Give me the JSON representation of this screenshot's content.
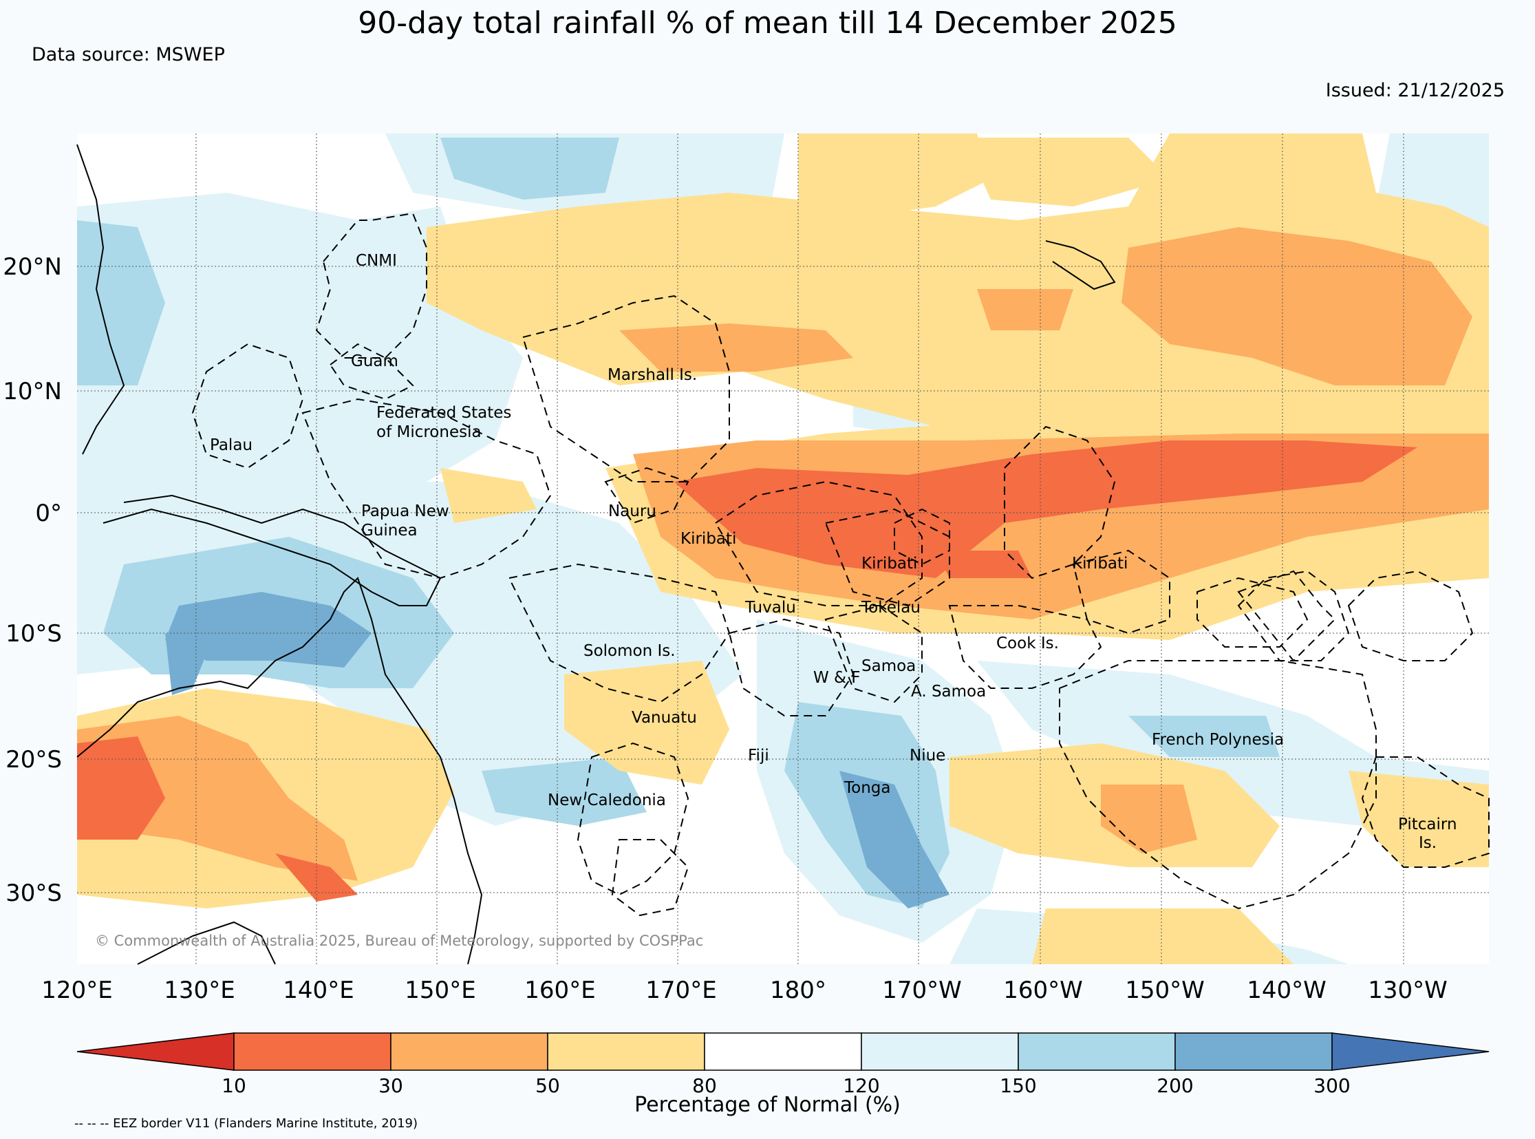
{
  "header": {
    "title": "90-day total rainfall % of mean till 14 December 2025",
    "data_source": "Data source: MSWEP",
    "issued": "Issued: 21/12/2025"
  },
  "map": {
    "lon_ticks": [
      "120°E",
      "130°E",
      "140°E",
      "150°E",
      "160°E",
      "170°E",
      "180°",
      "170°W",
      "160°W",
      "150°W",
      "140°W",
      "130°W"
    ],
    "lat_ticks": [
      "20°N",
      "10°N",
      "0°",
      "10°S",
      "20°S",
      "30°S"
    ],
    "copyright": "© Commonwealth of Australia 2025, Bureau of Meteorology, supported by COSPPac",
    "labels": [
      {
        "id": "cnmi",
        "text": "CNMI"
      },
      {
        "id": "guam",
        "text": "Guam"
      },
      {
        "id": "marshall",
        "text": "Marshall Is."
      },
      {
        "id": "fsm1",
        "text": "Federated States"
      },
      {
        "id": "fsm2",
        "text": "of Micronesia"
      },
      {
        "id": "palau",
        "text": "Palau"
      },
      {
        "id": "png1",
        "text": "Papua New"
      },
      {
        "id": "png2",
        "text": "Guinea"
      },
      {
        "id": "nauru",
        "text": "Nauru"
      },
      {
        "id": "kiribati1",
        "text": "Kiribati"
      },
      {
        "id": "kiribati2",
        "text": "Kiribati"
      },
      {
        "id": "kiribati3",
        "text": "Kiribati"
      },
      {
        "id": "tuvalu",
        "text": "Tuvalu"
      },
      {
        "id": "tokelau",
        "text": "Tokelau"
      },
      {
        "id": "cook",
        "text": "Cook Is."
      },
      {
        "id": "solomon",
        "text": "Solomon Is."
      },
      {
        "id": "samoa",
        "text": "Samoa"
      },
      {
        "id": "wf",
        "text": "W & F"
      },
      {
        "id": "asamoa",
        "text": "A. Samoa"
      },
      {
        "id": "vanuatu",
        "text": "Vanuatu"
      },
      {
        "id": "fiji",
        "text": "Fiji"
      },
      {
        "id": "niue",
        "text": "Niue"
      },
      {
        "id": "tonga",
        "text": "Tonga"
      },
      {
        "id": "frpoly",
        "text": "French Polynesia"
      },
      {
        "id": "newcal",
        "text": "New Caledonia"
      },
      {
        "id": "pitcairn1",
        "text": "Pitcairn"
      },
      {
        "id": "pitcairn2",
        "text": "Is."
      }
    ]
  },
  "colorbar": {
    "ticks": [
      "10",
      "30",
      "50",
      "80",
      "120",
      "150",
      "200",
      "300"
    ],
    "colors": [
      "#d73027",
      "#f46d43",
      "#fdae61",
      "#fee090",
      "#ffffff",
      "#e0f3f8",
      "#abd9e9",
      "#74add1",
      "#4575b4"
    ],
    "label": "Percentage of Normal (%)"
  },
  "footer": {
    "eez_note": "-- -- -- EEZ border V11 (Flanders Marine Institute, 2019)"
  }
}
